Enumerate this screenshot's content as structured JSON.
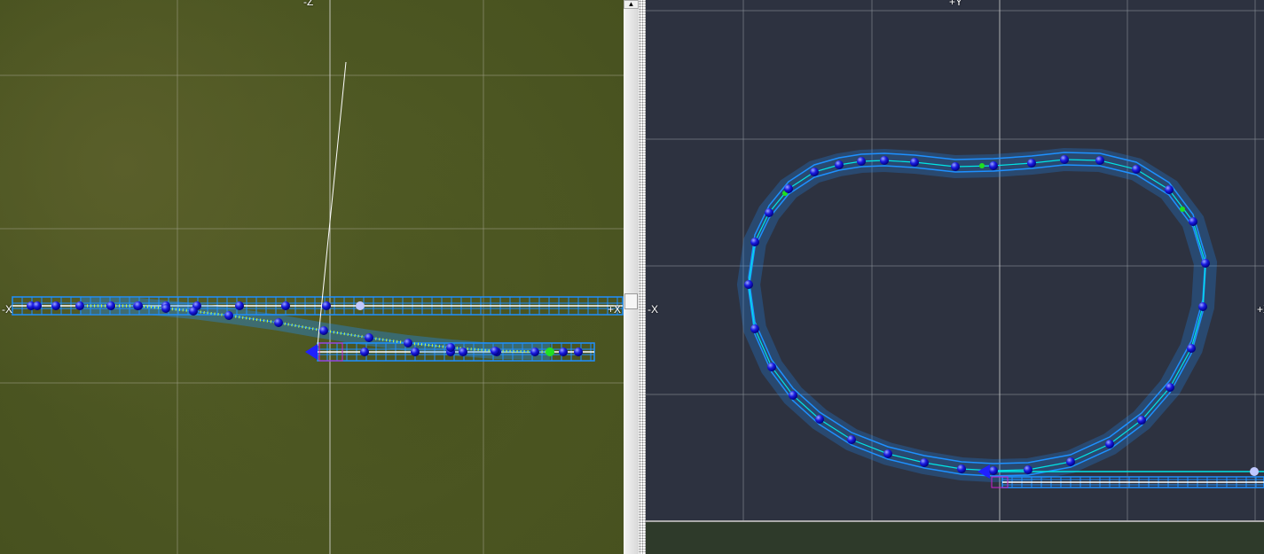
{
  "left_view": {
    "top_axis": "-Z",
    "left_axis": "-X",
    "right_axis": "+X"
  },
  "right_view": {
    "top_axis": "+Y",
    "left_axis": "-X",
    "right_axis": "+X"
  },
  "colors": {
    "track": "#1e90ff",
    "spline": "#00e5e5",
    "node": "#1010e0",
    "grid": "#8a8f99",
    "ground": "#4f5a24",
    "ortho_bg": "#2d3240"
  },
  "icons": {
    "scroll_up": "triangle-up-icon",
    "scroll_thumb": "grip-icon"
  }
}
